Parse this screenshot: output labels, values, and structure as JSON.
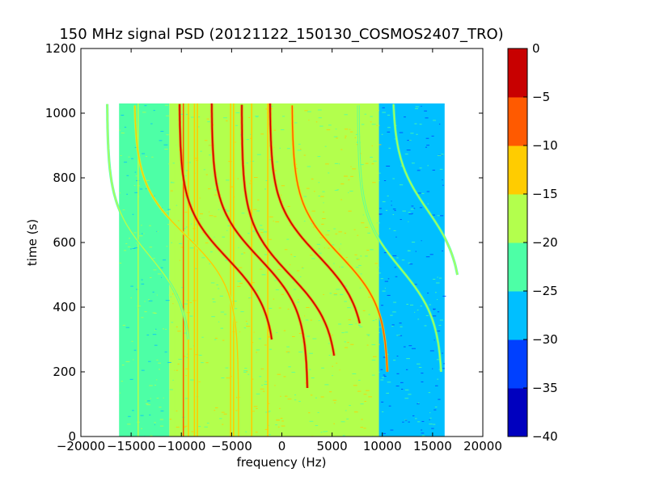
{
  "chart_data": {
    "type": "heatmap",
    "title": "150 MHz signal PSD (20121122_150130_COSMOS2407_TRO)",
    "xlabel": "frequency (Hz)",
    "ylabel": "time (s)",
    "xlim": [
      -20000,
      20000
    ],
    "ylim": [
      0,
      1200
    ],
    "xticks": [
      -20000,
      -15000,
      -10000,
      -5000,
      0,
      5000,
      10000,
      15000,
      20000
    ],
    "xtick_labels": [
      "−20000",
      "−15000",
      "−10000",
      "−5000",
      "0",
      "5000",
      "10000",
      "15000",
      "20000"
    ],
    "yticks": [
      0,
      200,
      400,
      600,
      800,
      1000,
      1200
    ],
    "ytick_labels": [
      "0",
      "200",
      "400",
      "600",
      "800",
      "1000",
      "1200"
    ],
    "data_extent": {
      "x": [
        -16200,
        16200
      ],
      "y": [
        0,
        1030
      ]
    },
    "background_regions": [
      {
        "x": [
          -16200,
          -11200
        ],
        "level": -25
      },
      {
        "x": [
          -11200,
          9600
        ],
        "level": -20
      },
      {
        "x": [
          9600,
          16200
        ],
        "level": -30
      }
    ],
    "vertical_lines": [
      {
        "x": -14300,
        "level": -20
      },
      {
        "x": -10600,
        "level": -20
      },
      {
        "x": -9800,
        "level": -10
      },
      {
        "x": -9300,
        "level": -15
      },
      {
        "x": -8700,
        "level": -15
      },
      {
        "x": -8400,
        "level": -15
      },
      {
        "x": -5100,
        "level": -15
      },
      {
        "x": -4800,
        "level": -15
      },
      {
        "x": -3000,
        "level": -15
      },
      {
        "x": -1400,
        "level": -15
      },
      {
        "x": 9600,
        "level": -20
      }
    ],
    "signal_traces": [
      {
        "center_x": -9500,
        "top_y": 1030,
        "bottom_y": 0,
        "inflection_y": 620,
        "amplitude_hz": 5200,
        "level": -15
      },
      {
        "center_x": -5400,
        "top_y": 1030,
        "bottom_y": 300,
        "inflection_y": 550,
        "amplitude_hz": 4800,
        "level": -5
      },
      {
        "center_x": -2200,
        "top_y": 1030,
        "bottom_y": 150,
        "inflection_y": 550,
        "amplitude_hz": 4800,
        "level": -5
      },
      {
        "center_x": 800,
        "top_y": 1030,
        "bottom_y": 250,
        "inflection_y": 500,
        "amplitude_hz": 4800,
        "level": -5
      },
      {
        "center_x": 3600,
        "top_y": 1030,
        "bottom_y": 350,
        "inflection_y": 560,
        "amplitude_hz": 4800,
        "level": -5
      },
      {
        "center_x": 5800,
        "top_y": 1030,
        "bottom_y": 200,
        "inflection_y": 560,
        "amplitude_hz": 4800,
        "level": -10
      },
      {
        "center_x": -13200,
        "top_y": 1030,
        "bottom_y": 300,
        "inflection_y": 560,
        "amplitude_hz": 4200,
        "level": -20
      },
      {
        "center_x": 11800,
        "top_y": 1030,
        "bottom_y": 200,
        "inflection_y": 520,
        "amplitude_hz": 4200,
        "level": -20
      },
      {
        "center_x": 14500,
        "top_y": 1030,
        "bottom_y": 500,
        "inflection_y": 700,
        "amplitude_hz": 3500,
        "level": -20
      }
    ],
    "colorbar": {
      "range": [
        -40,
        0
      ],
      "levels": [
        -40,
        -35,
        -30,
        -25,
        -20,
        -15,
        -10,
        -5,
        0
      ],
      "tick_labels": [
        "−40",
        "−35",
        "−30",
        "−25",
        "−20",
        "−15",
        "−10",
        "−5",
        "0"
      ],
      "colors": [
        "#0000bf",
        "#0040ff",
        "#00bfff",
        "#4dffa6",
        "#b3ff4d",
        "#ffcc00",
        "#ff5a00",
        "#c80000"
      ]
    },
    "grid": false,
    "legend": "none"
  }
}
